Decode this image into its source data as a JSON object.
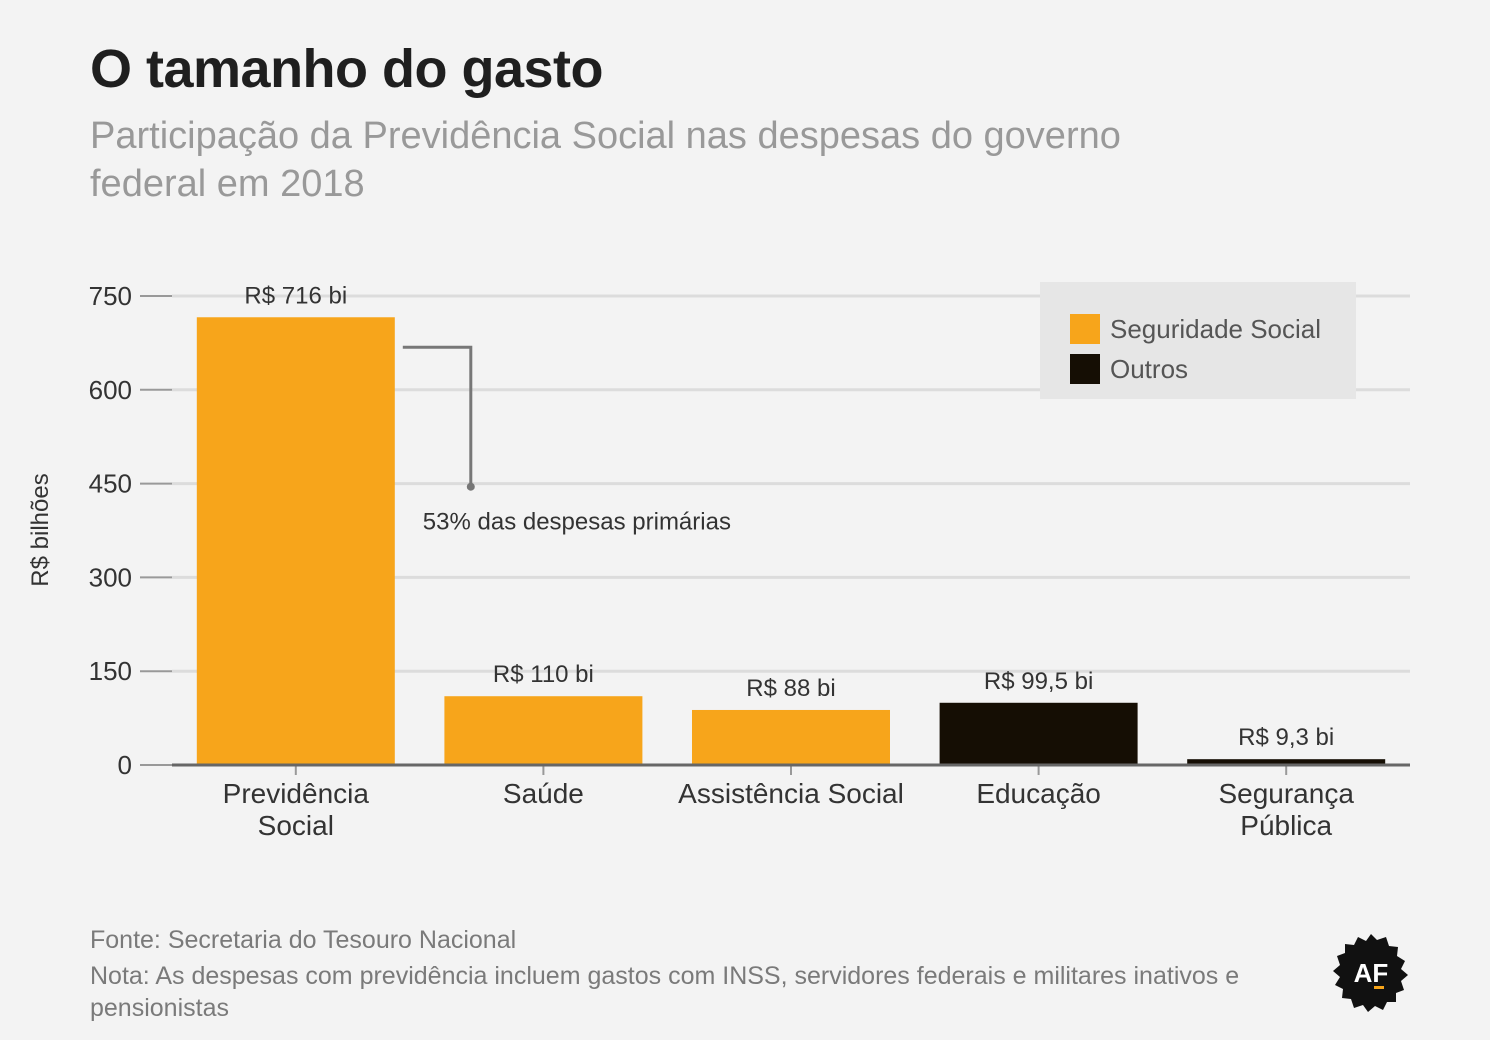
{
  "title": "O tamanho do gasto",
  "subtitle": "Participação da Previdência Social nas despesas do governo federal em 2018",
  "source": "Fonte: Secretaria do Tesouro Nacional",
  "note": "Nota: As despesas com previdência incluem gastos com INSS, servidores federais e militares inativos e pensionistas",
  "logo_text": "AF",
  "colors": {
    "seguridade": "#f7a51b",
    "outros": "#150e04",
    "grid": "#dcdcdc",
    "axis": "#666666",
    "annotation": "#777777"
  },
  "chart_data": {
    "type": "bar",
    "ylabel": "R$ bilhões",
    "ylim": [
      0,
      750
    ],
    "yticks": [
      0,
      150,
      300,
      450,
      600,
      750
    ],
    "grid": true,
    "legend_position": "top-right",
    "categories": [
      [
        "Previdência",
        "Social"
      ],
      [
        "Saúde"
      ],
      [
        "Assistência Social"
      ],
      [
        "Educação"
      ],
      [
        "Segurança",
        "Pública"
      ]
    ],
    "values": [
      716,
      110,
      88,
      99.5,
      9.3
    ],
    "value_labels": [
      "R$ 716 bi",
      "R$ 110 bi",
      "R$ 88 bi",
      "R$ 99,5 bi",
      "R$ 9,3 bi"
    ],
    "groups": [
      "seguridade",
      "seguridade",
      "seguridade",
      "outros",
      "outros"
    ],
    "legend": [
      {
        "key": "seguridade",
        "label": "Seguridade Social"
      },
      {
        "key": "outros",
        "label": "Outros"
      }
    ],
    "annotation": {
      "text": "53% das despesas primárias",
      "target_bar": 0,
      "y_value": 445
    }
  }
}
